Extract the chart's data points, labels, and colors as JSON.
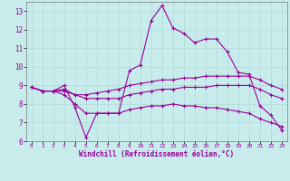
{
  "xlabel": "Windchill (Refroidissement éolien,°C)",
  "bg_color": "#c8ecec",
  "line_color": "#990099",
  "grid_color": "#b0d8d8",
  "xlim": [
    -0.5,
    23.5
  ],
  "ylim": [
    6,
    13.5
  ],
  "yticks": [
    6,
    7,
    8,
    9,
    10,
    11,
    12,
    13
  ],
  "xticks": [
    0,
    1,
    2,
    3,
    4,
    5,
    6,
    7,
    8,
    9,
    10,
    11,
    12,
    13,
    14,
    15,
    16,
    17,
    18,
    19,
    20,
    21,
    22,
    23
  ],
  "line1_x": [
    0,
    1,
    2,
    3,
    4,
    5,
    6,
    7,
    8,
    9,
    10,
    11,
    12,
    13,
    14,
    15,
    16,
    17,
    18,
    19,
    20,
    21,
    22,
    23
  ],
  "line1_y": [
    8.9,
    8.7,
    8.7,
    9.0,
    7.8,
    6.2,
    7.5,
    7.5,
    7.5,
    9.8,
    10.1,
    12.5,
    13.3,
    12.1,
    11.8,
    11.3,
    11.5,
    11.5,
    10.8,
    9.7,
    9.6,
    7.9,
    7.4,
    6.6
  ],
  "line2_x": [
    0,
    1,
    2,
    3,
    4,
    5,
    6,
    7,
    8,
    9,
    10,
    11,
    12,
    13,
    14,
    15,
    16,
    17,
    18,
    19,
    20,
    21,
    22,
    23
  ],
  "line2_y": [
    8.9,
    8.7,
    8.7,
    8.8,
    8.5,
    8.5,
    8.6,
    8.7,
    8.8,
    9.0,
    9.1,
    9.2,
    9.3,
    9.3,
    9.4,
    9.4,
    9.5,
    9.5,
    9.5,
    9.5,
    9.5,
    9.3,
    9.0,
    8.8
  ],
  "line3_x": [
    0,
    1,
    2,
    3,
    4,
    5,
    6,
    7,
    8,
    9,
    10,
    11,
    12,
    13,
    14,
    15,
    16,
    17,
    18,
    19,
    20,
    21,
    22,
    23
  ],
  "line3_y": [
    8.9,
    8.7,
    8.7,
    8.7,
    8.5,
    8.3,
    8.3,
    8.3,
    8.3,
    8.5,
    8.6,
    8.7,
    8.8,
    8.8,
    8.9,
    8.9,
    8.9,
    9.0,
    9.0,
    9.0,
    9.0,
    8.8,
    8.5,
    8.3
  ],
  "line4_x": [
    0,
    1,
    2,
    3,
    4,
    5,
    6,
    7,
    8,
    9,
    10,
    11,
    12,
    13,
    14,
    15,
    16,
    17,
    18,
    19,
    20,
    21,
    22,
    23
  ],
  "line4_y": [
    8.9,
    8.7,
    8.7,
    8.5,
    8.0,
    7.5,
    7.5,
    7.5,
    7.5,
    7.7,
    7.8,
    7.9,
    7.9,
    8.0,
    7.9,
    7.9,
    7.8,
    7.8,
    7.7,
    7.6,
    7.5,
    7.2,
    7.0,
    6.8
  ]
}
